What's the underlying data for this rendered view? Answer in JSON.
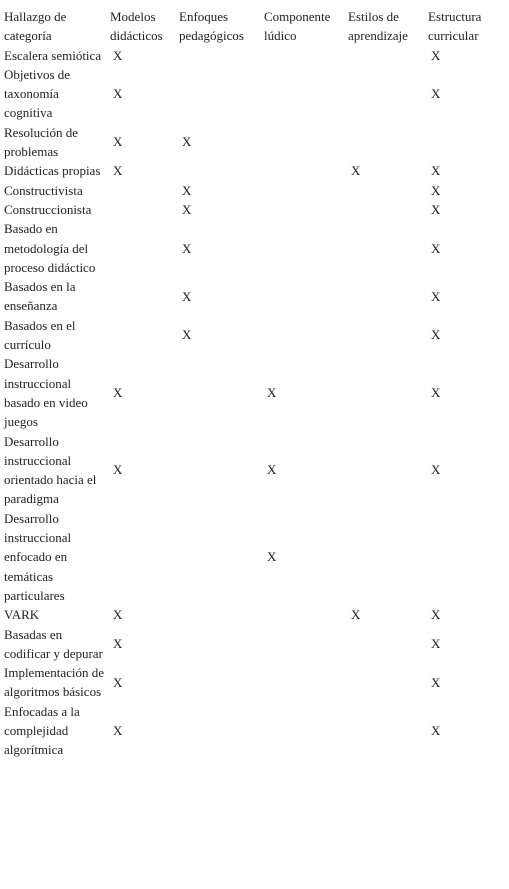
{
  "table": {
    "header": [
      "Hallazgo de categoría",
      "Modelos didácticos",
      "Enfoques pedagógicos",
      "Componente lúdico",
      "Estilos de aprendizaje",
      "Estructura curricular"
    ],
    "rows": [
      [
        "Escalera semiótica",
        "X",
        null,
        null,
        null,
        "X"
      ],
      [
        "Objetivos de taxonomía cognitiva",
        "X",
        null,
        null,
        null,
        "X"
      ],
      [
        "Resolución de problemas",
        "X",
        "X",
        null,
        null,
        null
      ],
      [
        "Didácticas propias",
        "X",
        null,
        null,
        "X",
        "X"
      ],
      [
        "Constructivista",
        null,
        "X",
        null,
        null,
        "X"
      ],
      [
        "Construccionista",
        null,
        "X",
        null,
        null,
        "X"
      ],
      [
        "Basado en metodología del proceso didáctico",
        null,
        "X",
        null,
        null,
        "X"
      ],
      [
        "Basados en la enseñanza",
        null,
        "X",
        null,
        null,
        "X"
      ],
      [
        "Basados en el currículo",
        null,
        "X",
        null,
        null,
        "X"
      ],
      [
        "Desarrollo instruccional basado en video juegos",
        "X",
        null,
        "X",
        null,
        "X"
      ],
      [
        "Desarrollo instruccional orientado hacia el paradigma",
        "X",
        null,
        "X",
        null,
        "X"
      ],
      [
        "Desarrollo instruccional enfocado en temáticas particulares",
        null,
        null,
        "X",
        null,
        null
      ],
      [
        "VARK",
        "X",
        null,
        null,
        "X",
        "X"
      ],
      [
        "Basadas en codificar y depurar",
        "X",
        null,
        null,
        null,
        "X"
      ],
      [
        "Implementación de algoritmos básicos",
        "X",
        null,
        null,
        null,
        "X"
      ],
      [
        "Enfocadas a la complejidad algorítmica",
        "X",
        null,
        null,
        null,
        "X"
      ]
    ]
  }
}
